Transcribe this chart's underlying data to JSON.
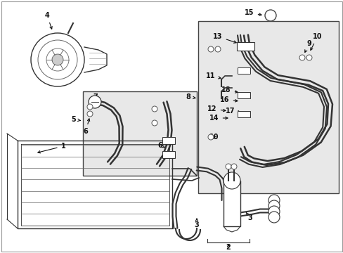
{
  "bg_color": "#ffffff",
  "box1_bg": "#e8e8e8",
  "box2_bg": "#e8e8e8",
  "line_color": "#333333",
  "label_color": "#111111",
  "fs": 7.0
}
